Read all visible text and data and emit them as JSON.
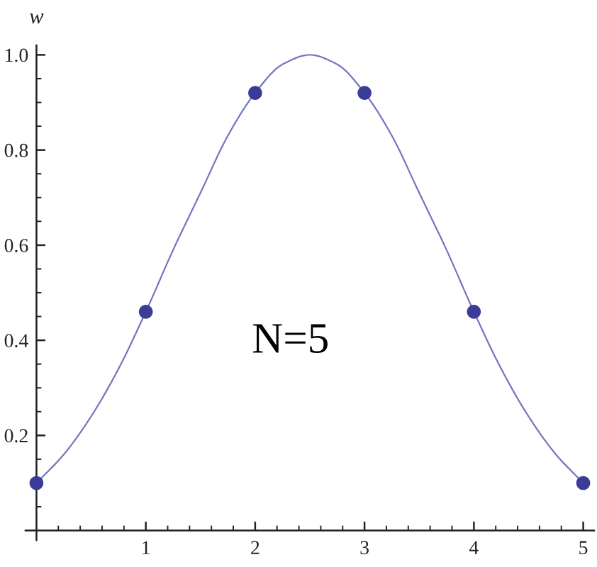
{
  "chart_data": {
    "type": "line",
    "ylabel": "w",
    "annotations": [
      "N=5"
    ],
    "series": [
      {
        "color": "#7474c2",
        "line_style": "solid",
        "marker": "none",
        "x": [
          0,
          0.25,
          0.5,
          0.75,
          1,
          1.25,
          1.5,
          1.75,
          2,
          2.25,
          2.5,
          2.75,
          3,
          3.25,
          3.5,
          3.75,
          4,
          4.25,
          4.5,
          4.75,
          5
        ],
        "values": [
          0.1,
          0.16,
          0.24,
          0.34,
          0.46,
          0.59,
          0.71,
          0.83,
          0.92,
          0.98,
          1.0,
          0.98,
          0.92,
          0.83,
          0.71,
          0.59,
          0.46,
          0.34,
          0.24,
          0.16,
          0.1
        ]
      },
      {
        "type": "scatter",
        "color": "#3b3b98",
        "marker": "circle",
        "x": [
          0,
          1,
          2,
          3,
          4,
          5
        ],
        "values": [
          0.1,
          0.46,
          0.92,
          0.92,
          0.46,
          0.1
        ]
      }
    ],
    "xlim": [
      -0.1,
      5.1
    ],
    "ylim": [
      -0.02,
      1.02
    ],
    "xticks": [
      {
        "value": 0.2,
        "label": null
      },
      {
        "value": 0.4,
        "label": null
      },
      {
        "value": 0.6,
        "label": null
      },
      {
        "value": 0.8,
        "label": null
      },
      1,
      {
        "value": 1.2,
        "label": null
      },
      {
        "value": 1.4,
        "label": null
      },
      {
        "value": 1.6,
        "label": null
      },
      {
        "value": 1.8,
        "label": null
      },
      2,
      {
        "value": 2.2,
        "label": null
      },
      {
        "value": 2.4,
        "label": null
      },
      {
        "value": 2.6,
        "label": null
      },
      {
        "value": 2.8,
        "label": null
      },
      3,
      {
        "value": 3.2,
        "label": null
      },
      {
        "value": 3.4,
        "label": null
      },
      {
        "value": 3.6,
        "label": null
      },
      {
        "value": 3.8,
        "label": null
      },
      4,
      {
        "value": 4.2,
        "label": null
      },
      {
        "value": 4.4,
        "label": null
      },
      {
        "value": 4.6,
        "label": null
      },
      {
        "value": 4.8,
        "label": null
      },
      5
    ],
    "yticks": [
      {
        "value": 0.05,
        "label": null
      },
      {
        "value": 0.1,
        "label": null
      },
      {
        "value": 0.15,
        "label": null
      },
      0.2,
      {
        "value": 0.25,
        "label": null
      },
      {
        "value": 0.3,
        "label": null
      },
      {
        "value": 0.35,
        "label": null
      },
      0.4,
      {
        "value": 0.45,
        "label": null
      },
      {
        "value": 0.5,
        "label": null
      },
      {
        "value": 0.55,
        "label": null
      },
      0.6,
      {
        "value": 0.65,
        "label": null
      },
      {
        "value": 0.7,
        "label": null
      },
      {
        "value": 0.75,
        "label": null
      },
      0.8,
      {
        "value": 0.85,
        "label": null
      },
      {
        "value": 0.9,
        "label": null
      },
      {
        "value": 0.95,
        "label": null
      },
      {
        "value": 1,
        "label": "1.0"
      }
    ]
  }
}
